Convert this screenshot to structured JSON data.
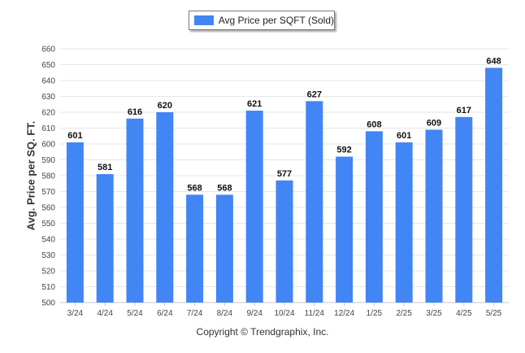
{
  "chart_data": {
    "type": "bar",
    "title": "",
    "xlabel": "",
    "ylabel": "Avg. Price per SQ. FT.",
    "categories": [
      "3/24",
      "4/24",
      "5/24",
      "6/24",
      "7/24",
      "8/24",
      "9/24",
      "10/24",
      "11/24",
      "12/24",
      "1/25",
      "2/25",
      "3/25",
      "4/25",
      "5/25"
    ],
    "series": [
      {
        "name": "Avg Price per SQFT (Sold)",
        "values": [
          601,
          581,
          616,
          620,
          568,
          568,
          621,
          577,
          627,
          592,
          608,
          601,
          609,
          617,
          648
        ],
        "color": "#4285f4"
      }
    ],
    "ylim": [
      500,
      660
    ],
    "yticks": [
      500,
      510,
      520,
      530,
      540,
      550,
      560,
      570,
      580,
      590,
      600,
      610,
      620,
      630,
      640,
      650,
      660
    ],
    "grid": true,
    "legend": "top-center",
    "data_labels": true
  },
  "footer": "Copyright © Trendgraphix, Inc."
}
